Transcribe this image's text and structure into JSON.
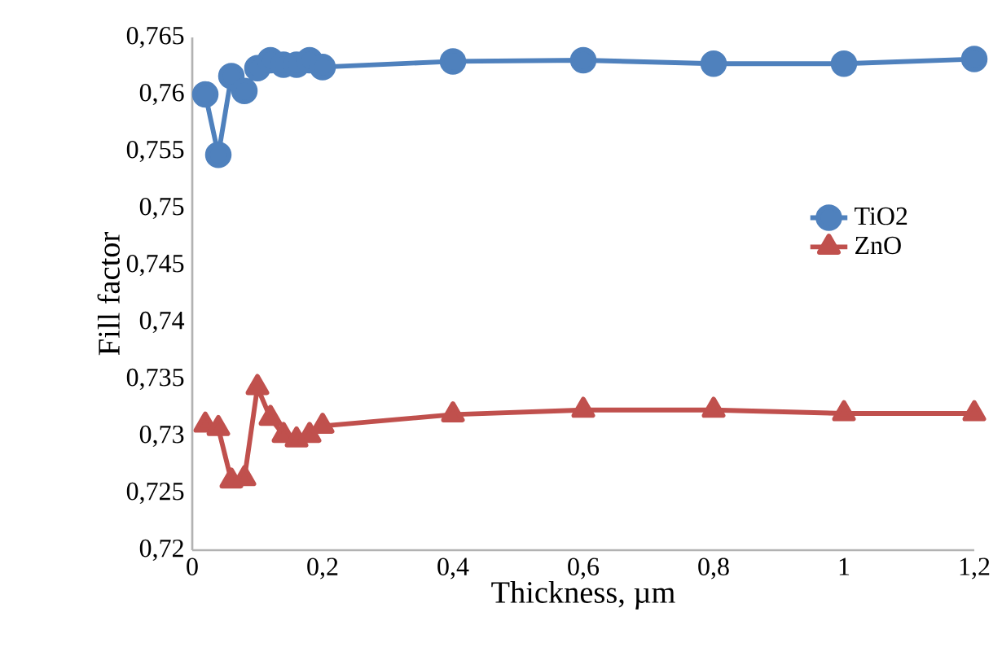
{
  "chart_data": {
    "type": "line",
    "xlabel": "Thickness, µm",
    "ylabel": "Fill factor",
    "x": [
      0.02,
      0.04,
      0.06,
      0.08,
      0.1,
      0.12,
      0.14,
      0.16,
      0.18,
      0.2,
      0.4,
      0.6,
      0.8,
      1.0,
      1.2
    ],
    "series": [
      {
        "name": "TiO2",
        "color": "#4f81bd",
        "marker": "circle",
        "values": [
          0.76,
          0.7547,
          0.7616,
          0.7603,
          0.7623,
          0.763,
          0.7626,
          0.7626,
          0.763,
          0.7624,
          0.7629,
          0.763,
          0.7627,
          0.7627,
          0.7631
        ]
      },
      {
        "name": "ZnO",
        "color": "#c0504d",
        "marker": "triangle",
        "values": [
          0.731,
          0.7307,
          0.7261,
          0.7263,
          0.7343,
          0.7316,
          0.7301,
          0.7297,
          0.7301,
          0.7309,
          0.7319,
          0.7323,
          0.7323,
          0.732,
          0.732
        ]
      }
    ],
    "xlim": [
      0,
      1.2
    ],
    "xticks": [
      {
        "value": 0,
        "label": "0"
      },
      {
        "value": 0.2,
        "label": "0,2"
      },
      {
        "value": 0.4,
        "label": "0,4"
      },
      {
        "value": 0.6,
        "label": "0,6"
      },
      {
        "value": 0.8,
        "label": "0,8"
      },
      {
        "value": 1,
        "label": "1"
      },
      {
        "value": 1.2,
        "label": "1,2"
      }
    ],
    "ylim": [
      0.72,
      0.765
    ],
    "yticks": [
      {
        "value": 0.72,
        "label": "0,72"
      },
      {
        "value": 0.725,
        "label": "0,725"
      },
      {
        "value": 0.73,
        "label": "0,73"
      },
      {
        "value": 0.735,
        "label": "0,735"
      },
      {
        "value": 0.74,
        "label": "0,74"
      },
      {
        "value": 0.745,
        "label": "0,745"
      },
      {
        "value": 0.75,
        "label": "0,75"
      },
      {
        "value": 0.755,
        "label": "0,755"
      },
      {
        "value": 0.76,
        "label": "0,76"
      },
      {
        "value": 0.765,
        "label": "0,765"
      }
    ],
    "grid": false,
    "legend": "right",
    "line_style": "solid"
  }
}
